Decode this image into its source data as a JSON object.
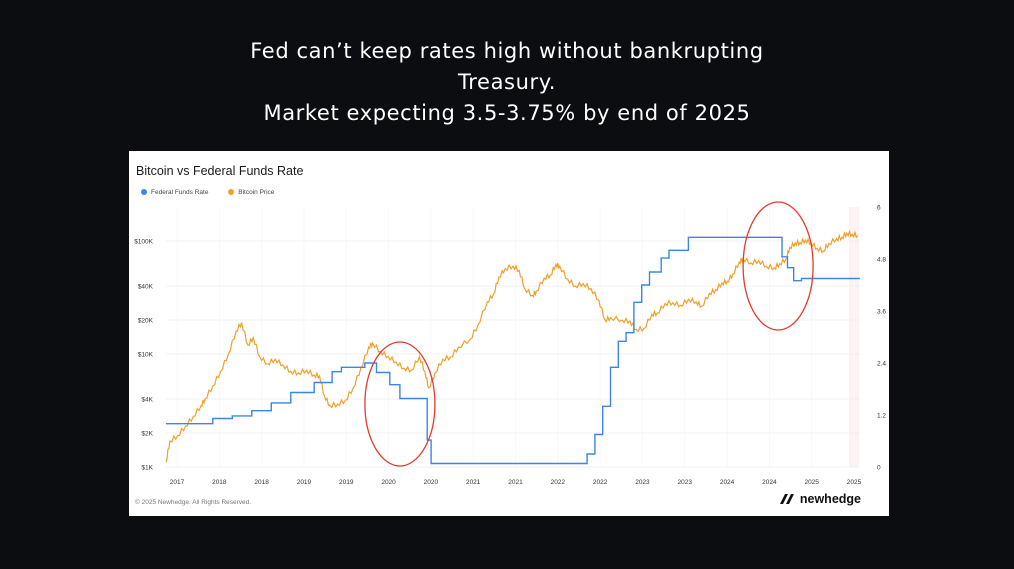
{
  "headline": {
    "line1": "Fed can’t keep rates high without bankrupting",
    "line2": "Treasury.",
    "line3": "Market expecting 3.5-3.75% by end of 2025"
  },
  "footer": {
    "copyright": "© 2025 Newhedge. All Rights Reserved.",
    "brand": "newhedge"
  },
  "colors": {
    "background": "#0c0d11",
    "fed_line": "#3b86e8",
    "btc_line": "#f0a02a",
    "annotation": "#e23b2e"
  },
  "annotations": [
    {
      "shape": "ellipse",
      "color": "#e23b2e",
      "around_date": 2019.85
    },
    {
      "shape": "ellipse",
      "color": "#e23b2e",
      "around_date": 2024.7
    }
  ],
  "chart_data": {
    "type": "line",
    "title": "Bitcoin vs Federal Funds Rate",
    "legend": [
      "Federal Funds Rate",
      "Bitcoin Price"
    ],
    "legend_position": "top-left",
    "grid": true,
    "x_tick_labels": [
      "2017",
      "2018",
      "2018",
      "2019",
      "2019",
      "2020",
      "2020",
      "2021",
      "2021",
      "2022",
      "2022",
      "2023",
      "2023",
      "2024",
      "2024",
      "2025",
      "2025"
    ],
    "xlim": [
      2016.85,
      2025.75
    ],
    "y_left": {
      "scale": "log",
      "ticks": [
        "$1K",
        "$2K",
        "$4K",
        "$10K",
        "$20K",
        "$40K",
        "$100K"
      ],
      "values": [
        1000,
        2000,
        4000,
        10000,
        20000,
        40000,
        100000
      ],
      "range": [
        1000,
        200000
      ]
    },
    "y_right": {
      "scale": "linear",
      "ticks": [
        "0",
        "1.2",
        "2.4",
        "3.6",
        "4.8",
        "6"
      ],
      "values": [
        0,
        1.2,
        2.4,
        3.6,
        4.8,
        6
      ],
      "range": [
        0,
        6
      ]
    },
    "series": [
      {
        "name": "Federal Funds Rate",
        "axis": "right",
        "step": true,
        "points": [
          [
            2016.85,
            1.0
          ],
          [
            2017.2,
            1.0
          ],
          [
            2017.45,
            1.12
          ],
          [
            2017.7,
            1.18
          ],
          [
            2017.95,
            1.3
          ],
          [
            2018.2,
            1.48
          ],
          [
            2018.45,
            1.72
          ],
          [
            2018.75,
            1.95
          ],
          [
            2018.98,
            2.2
          ],
          [
            2019.1,
            2.3
          ],
          [
            2019.4,
            2.4
          ],
          [
            2019.55,
            2.18
          ],
          [
            2019.72,
            1.9
          ],
          [
            2019.85,
            1.58
          ],
          [
            2020.15,
            1.58
          ],
          [
            2020.2,
            0.62
          ],
          [
            2020.25,
            0.08
          ],
          [
            2020.5,
            0.08
          ],
          [
            2021.5,
            0.08
          ],
          [
            2022.2,
            0.08
          ],
          [
            2022.25,
            0.3
          ],
          [
            2022.35,
            0.75
          ],
          [
            2022.45,
            1.4
          ],
          [
            2022.55,
            2.3
          ],
          [
            2022.65,
            2.9
          ],
          [
            2022.75,
            3.1
          ],
          [
            2022.85,
            3.8
          ],
          [
            2022.95,
            4.2
          ],
          [
            2023.05,
            4.5
          ],
          [
            2023.2,
            4.82
          ],
          [
            2023.3,
            5.0
          ],
          [
            2023.55,
            5.3
          ],
          [
            2024.7,
            5.3
          ],
          [
            2024.75,
            4.85
          ],
          [
            2024.82,
            4.6
          ],
          [
            2024.9,
            4.3
          ],
          [
            2025.0,
            4.35
          ],
          [
            2025.75,
            4.35
          ]
        ]
      },
      {
        "name": "Bitcoin Price",
        "axis": "left",
        "points": [
          [
            2016.85,
            1100
          ],
          [
            2016.9,
            1700
          ],
          [
            2017.0,
            1900
          ],
          [
            2017.1,
            2300
          ],
          [
            2017.2,
            2800
          ],
          [
            2017.3,
            3500
          ],
          [
            2017.35,
            4000
          ],
          [
            2017.45,
            5200
          ],
          [
            2017.55,
            7000
          ],
          [
            2017.65,
            10000
          ],
          [
            2017.75,
            16000
          ],
          [
            2017.82,
            19000
          ],
          [
            2017.9,
            12000
          ],
          [
            2017.97,
            14000
          ],
          [
            2018.05,
            9500
          ],
          [
            2018.15,
            8200
          ],
          [
            2018.25,
            9000
          ],
          [
            2018.35,
            8000
          ],
          [
            2018.45,
            7000
          ],
          [
            2018.55,
            6800
          ],
          [
            2018.65,
            7200
          ],
          [
            2018.75,
            6500
          ],
          [
            2018.82,
            6400
          ],
          [
            2018.88,
            4300
          ],
          [
            2018.95,
            3500
          ],
          [
            2019.05,
            3600
          ],
          [
            2019.15,
            3900
          ],
          [
            2019.25,
            5000
          ],
          [
            2019.35,
            7500
          ],
          [
            2019.45,
            11500
          ],
          [
            2019.5,
            12500
          ],
          [
            2019.6,
            10500
          ],
          [
            2019.7,
            9500
          ],
          [
            2019.8,
            8500
          ],
          [
            2019.9,
            7500
          ],
          [
            2020.0,
            7200
          ],
          [
            2020.1,
            9500
          ],
          [
            2020.17,
            7000
          ],
          [
            2020.22,
            5000
          ],
          [
            2020.3,
            6800
          ],
          [
            2020.4,
            9000
          ],
          [
            2020.5,
            9400
          ],
          [
            2020.6,
            11500
          ],
          [
            2020.75,
            13500
          ],
          [
            2020.85,
            18000
          ],
          [
            2020.97,
            29000
          ],
          [
            2021.05,
            34000
          ],
          [
            2021.12,
            48000
          ],
          [
            2021.2,
            57000
          ],
          [
            2021.3,
            60000
          ],
          [
            2021.38,
            55000
          ],
          [
            2021.45,
            38000
          ],
          [
            2021.55,
            33000
          ],
          [
            2021.6,
            36000
          ],
          [
            2021.7,
            47000
          ],
          [
            2021.78,
            50000
          ],
          [
            2021.85,
            62000
          ],
          [
            2021.9,
            60000
          ],
          [
            2022.0,
            46000
          ],
          [
            2022.1,
            40000
          ],
          [
            2022.2,
            42000
          ],
          [
            2022.3,
            38000
          ],
          [
            2022.4,
            30000
          ],
          [
            2022.48,
            20000
          ],
          [
            2022.55,
            21000
          ],
          [
            2022.7,
            20000
          ],
          [
            2022.8,
            19500
          ],
          [
            2022.88,
            16500
          ],
          [
            2022.98,
            16800
          ],
          [
            2023.08,
            22500
          ],
          [
            2023.15,
            23000
          ],
          [
            2023.25,
            28000
          ],
          [
            2023.35,
            28500
          ],
          [
            2023.45,
            27000
          ],
          [
            2023.55,
            30500
          ],
          [
            2023.65,
            29000
          ],
          [
            2023.72,
            26500
          ],
          [
            2023.82,
            34500
          ],
          [
            2023.9,
            37000
          ],
          [
            2023.98,
            42500
          ],
          [
            2024.05,
            44000
          ],
          [
            2024.12,
            51000
          ],
          [
            2024.2,
            65000
          ],
          [
            2024.25,
            70000
          ],
          [
            2024.35,
            64000
          ],
          [
            2024.45,
            67000
          ],
          [
            2024.55,
            60000
          ],
          [
            2024.65,
            58000
          ],
          [
            2024.72,
            63000
          ],
          [
            2024.8,
            69000
          ],
          [
            2024.85,
            88000
          ],
          [
            2024.92,
            96000
          ],
          [
            2024.98,
            97000
          ],
          [
            2025.05,
            102000
          ],
          [
            2025.12,
            97000
          ],
          [
            2025.2,
            86000
          ],
          [
            2025.28,
            82000
          ],
          [
            2025.35,
            95000
          ],
          [
            2025.45,
            105000
          ],
          [
            2025.52,
            108000
          ],
          [
            2025.58,
            117000
          ],
          [
            2025.65,
            115000
          ],
          [
            2025.72,
            112000
          ]
        ]
      }
    ]
  }
}
